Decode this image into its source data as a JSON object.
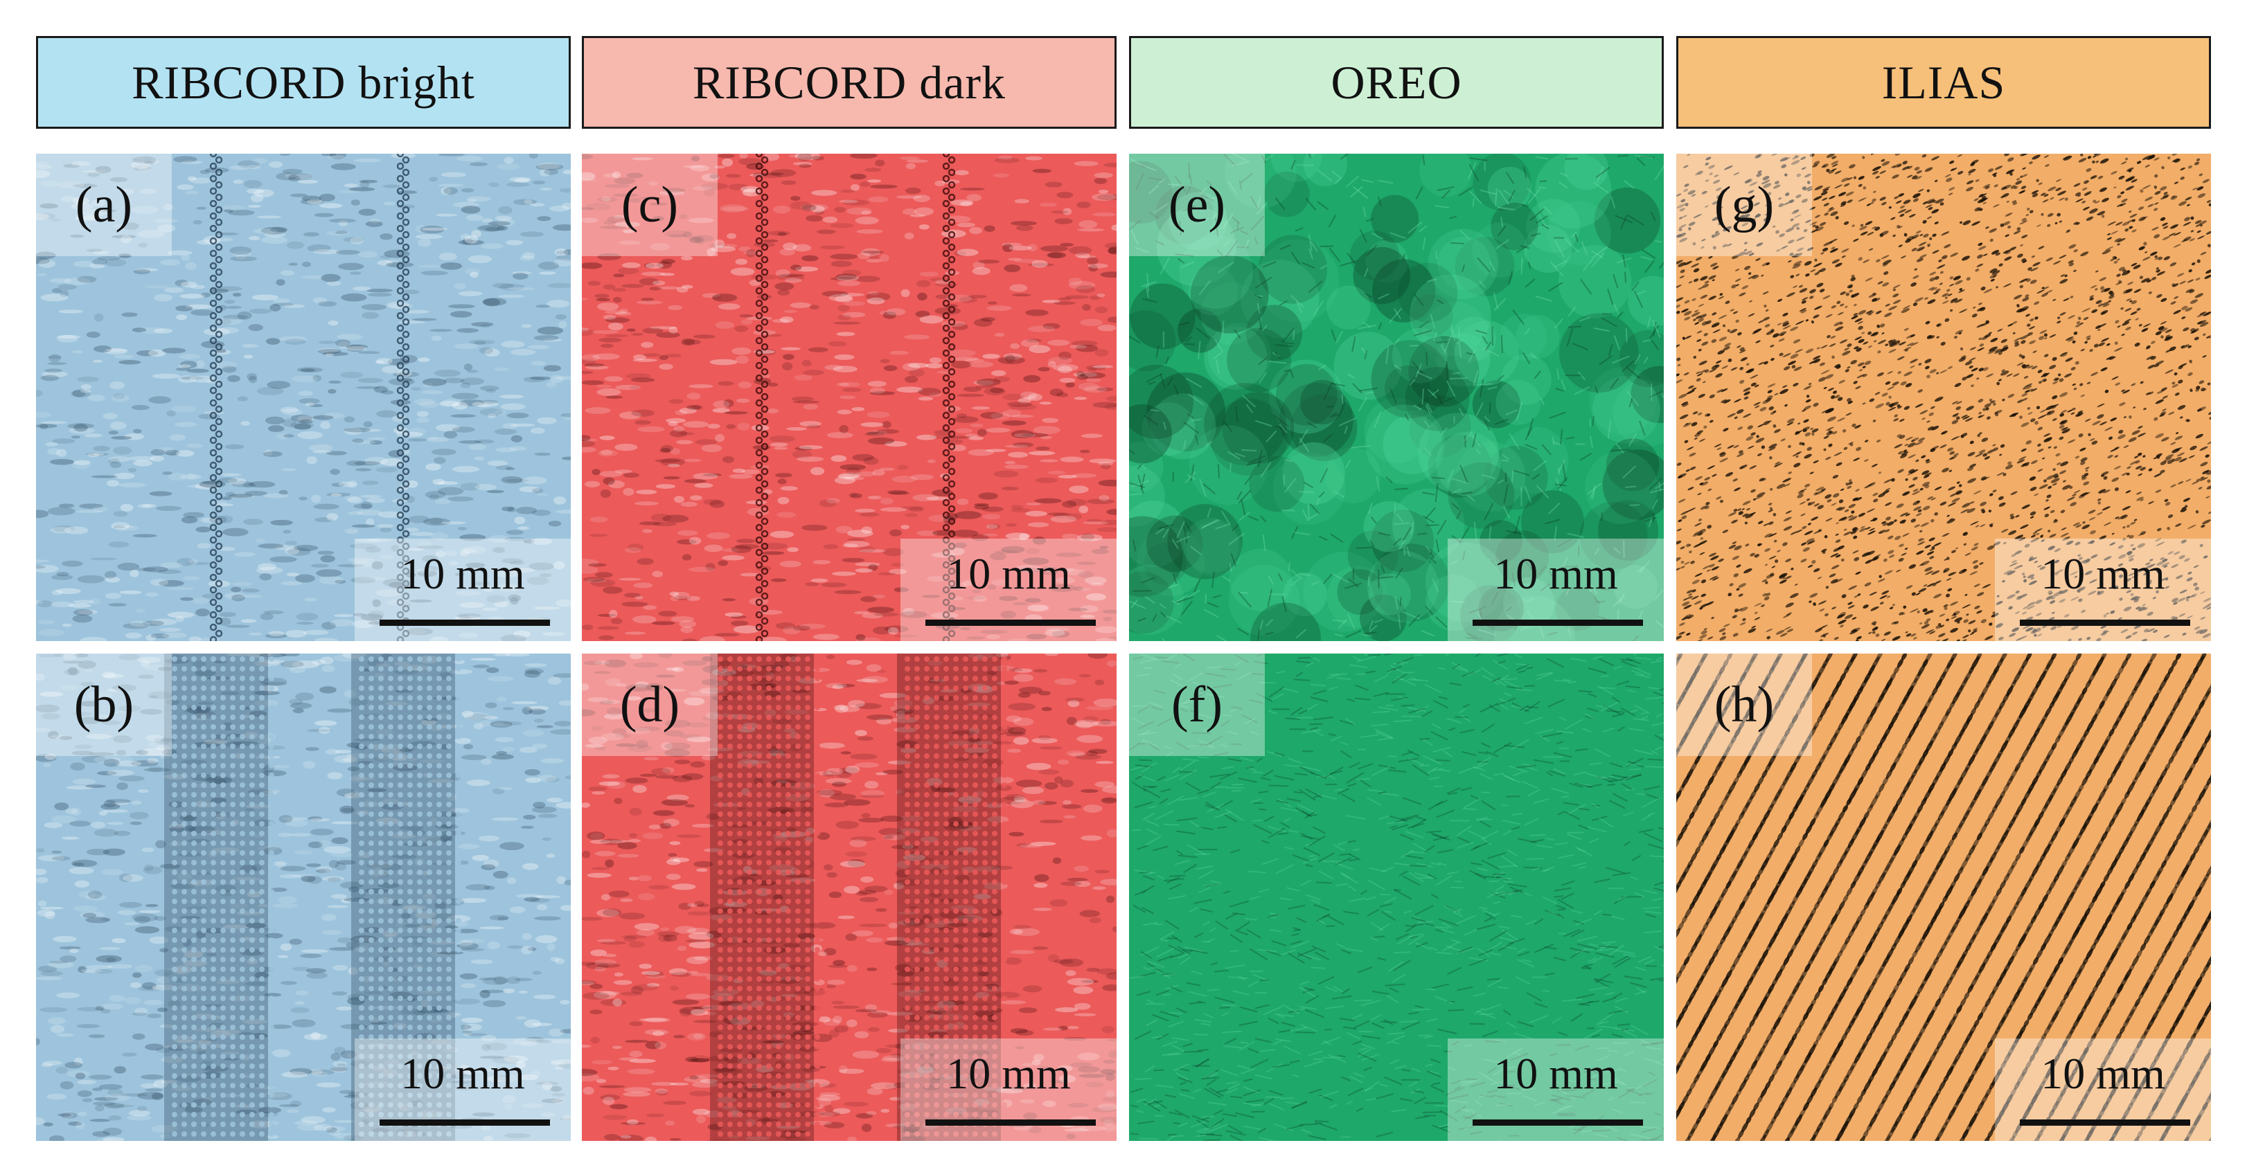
{
  "columns": [
    {
      "title": "RIBCORD bright",
      "header_color": "#b3e3f3",
      "texture_color": "#9dc4dc",
      "shadow_color": "#2f4a60",
      "panels": [
        {
          "label": "(a)",
          "pattern": "seam-lines"
        },
        {
          "label": "(b)",
          "pattern": "mesh-bands"
        }
      ]
    },
    {
      "title": "RIBCORD dark",
      "header_color": "#f7b9ae",
      "texture_color": "#ec5a5a",
      "shadow_color": "#4a1010",
      "panels": [
        {
          "label": "(c)",
          "pattern": "seam-lines"
        },
        {
          "label": "(d)",
          "pattern": "mesh-bands"
        }
      ]
    },
    {
      "title": "OREO",
      "header_color": "#cdf0d4",
      "texture_color": "#1ea86a",
      "shadow_color": "#0a3a22",
      "panels": [
        {
          "label": "(e)",
          "pattern": "tufts"
        },
        {
          "label": "(f)",
          "pattern": "fleece"
        }
      ]
    },
    {
      "title": "ILIAS",
      "header_color": "#f7c07a",
      "texture_color": "#f2ad68",
      "shadow_color": "#1a1208",
      "panels": [
        {
          "label": "(g)",
          "pattern": "speckle"
        },
        {
          "label": "(h)",
          "pattern": "diagonal-ribs"
        }
      ]
    }
  ],
  "scale_bar_label": "10 mm"
}
